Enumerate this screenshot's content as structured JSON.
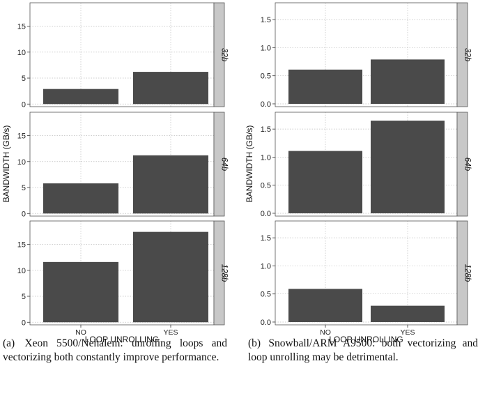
{
  "chart_data": [
    {
      "type": "bar",
      "ylabel": "BANDWIDTH (GB/s)",
      "xlabel": "LOOP UNROLLING",
      "categories": [
        "NO",
        "YES"
      ],
      "facets": [
        {
          "label": "32b",
          "values": [
            2.9,
            6.2
          ],
          "ylim": [
            -0.5,
            19.5
          ],
          "yticks": [
            0,
            5,
            10,
            15
          ],
          "ytick_labels": [
            "0",
            "5",
            "10",
            "15"
          ]
        },
        {
          "label": "64b",
          "values": [
            5.8,
            11.2
          ],
          "ylim": [
            -0.5,
            19.5
          ],
          "yticks": [
            0,
            5,
            10,
            15
          ],
          "ytick_labels": [
            "0",
            "5",
            "10",
            "15"
          ]
        },
        {
          "label": "128b",
          "values": [
            11.6,
            17.4
          ],
          "ylim": [
            -0.5,
            19.5
          ],
          "yticks": [
            0,
            5,
            10,
            15
          ],
          "ytick_labels": [
            "0",
            "5",
            "10",
            "15"
          ]
        }
      ],
      "grid": true,
      "bar_color": "#4a4a4a"
    },
    {
      "type": "bar",
      "ylabel": "BANDWIDTH (GB/s)",
      "xlabel": "LOOP UNROLLING",
      "categories": [
        "NO",
        "YES"
      ],
      "facets": [
        {
          "label": "32b",
          "values": [
            0.61,
            0.79
          ],
          "ylim": [
            -0.05,
            1.8
          ],
          "yticks": [
            0,
            0.5,
            1,
            1.5
          ],
          "ytick_labels": [
            "0.0",
            "0.5",
            "1.0",
            "1.5"
          ]
        },
        {
          "label": "64b",
          "values": [
            1.11,
            1.65
          ],
          "ylim": [
            -0.05,
            1.8
          ],
          "yticks": [
            0,
            0.5,
            1,
            1.5
          ],
          "ytick_labels": [
            "0.0",
            "0.5",
            "1.0",
            "1.5"
          ]
        },
        {
          "label": "128b",
          "values": [
            0.59,
            0.29
          ],
          "ylim": [
            -0.05,
            1.8
          ],
          "yticks": [
            0,
            0.5,
            1,
            1.5
          ],
          "ytick_labels": [
            "0.0",
            "0.5",
            "1.0",
            "1.5"
          ]
        }
      ],
      "grid": true,
      "bar_color": "#4a4a4a"
    }
  ],
  "captions": [
    {
      "tag": "(a)",
      "text": "Xeon 5500/Nehalem: unrolling loops and vectorizing both constantly improve performance."
    },
    {
      "tag": "(b)",
      "text": "Snowball/ARM A9500: both vectorizing and loop unrolling may be detrimental."
    }
  ],
  "colors": {
    "bar": "#4a4a4a",
    "strip": "#c8c8c8",
    "grid": "#bdbdbd",
    "frame": "#555555"
  }
}
